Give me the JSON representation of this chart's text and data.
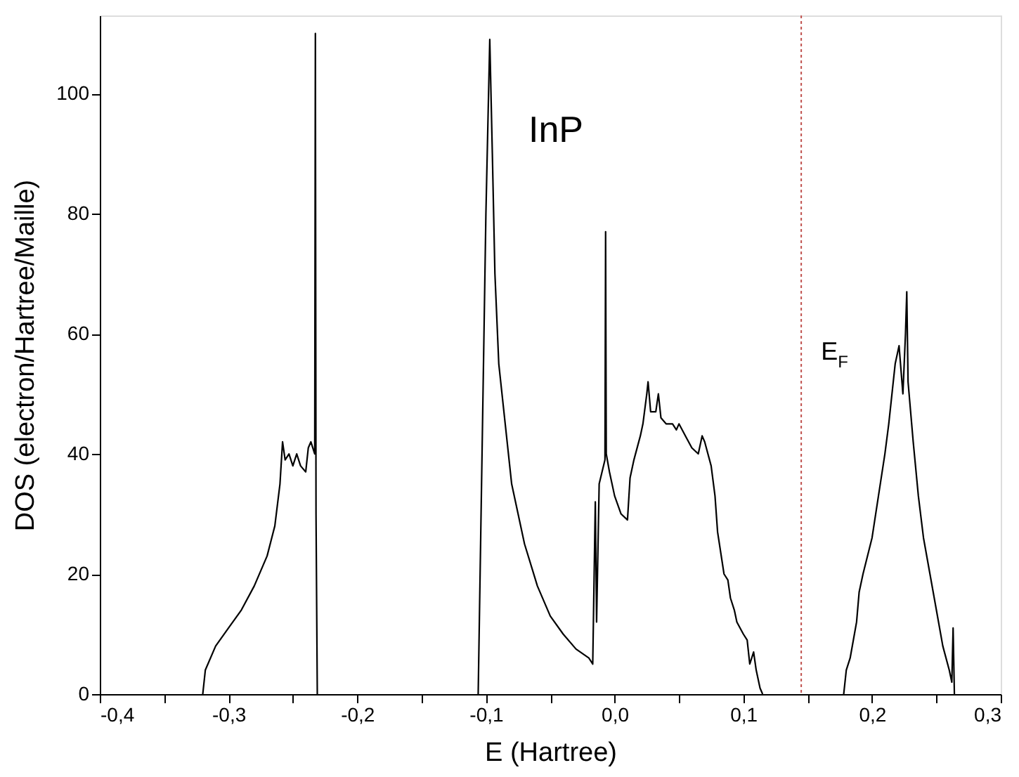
{
  "chart_data": {
    "type": "line",
    "xlabel": "E (Hartree)",
    "ylabel": "DOS (electron/Hartree/Maille)",
    "annotations": [
      "InP"
    ],
    "xlim": [
      -0.4,
      0.3
    ],
    "ylim": [
      0,
      113
    ],
    "xticks": [
      {
        "value": -0.4,
        "label": "-0,4"
      },
      {
        "value": -0.35,
        "label": null
      },
      {
        "value": -0.3,
        "label": "-0,3"
      },
      {
        "value": -0.25,
        "label": null
      },
      {
        "value": -0.2,
        "label": "-0,2"
      },
      {
        "value": -0.15,
        "label": null
      },
      {
        "value": -0.1,
        "label": "-0,1"
      },
      {
        "value": -0.05,
        "label": null
      },
      {
        "value": 0.0,
        "label": "0,0"
      },
      {
        "value": 0.05,
        "label": null
      },
      {
        "value": 0.1,
        "label": "0,1"
      },
      {
        "value": 0.15,
        "label": null
      },
      {
        "value": 0.2,
        "label": "0,2"
      },
      {
        "value": 0.25,
        "label": null
      },
      {
        "value": 0.3,
        "label": "0,3"
      }
    ],
    "yticks": [
      0,
      20,
      40,
      60,
      80,
      100
    ],
    "grid": false,
    "marker": "none",
    "line_style": "solid",
    "ref_lines": [
      {
        "axis": "x",
        "value": 0.145,
        "color": "#c0504d",
        "line_style": "dotted",
        "label": "E$_{F}$"
      }
    ],
    "series": [
      {
        "color": "#000000",
        "x": [
          -0.32,
          -0.318,
          -0.31,
          -0.3,
          -0.29,
          -0.28,
          -0.27,
          -0.264,
          -0.26,
          -0.258,
          -0.256,
          -0.253,
          -0.25,
          -0.247,
          -0.244,
          -0.24,
          -0.238,
          -0.236,
          -0.233,
          -0.2325,
          -0.232,
          -0.231,
          -0.2,
          -0.106,
          -0.1,
          -0.097,
          -0.095,
          -0.093,
          -0.09,
          -0.085,
          -0.08,
          -0.07,
          -0.06,
          -0.05,
          -0.04,
          -0.03,
          -0.02,
          -0.017,
          -0.015,
          -0.014,
          -0.012,
          -0.0075,
          -0.007,
          -0.0065,
          -0.004,
          0.0,
          0.005,
          0.01,
          0.012,
          0.015,
          0.02,
          0.022,
          0.025,
          0.026,
          0.028,
          0.032,
          0.034,
          0.036,
          0.04,
          0.045,
          0.048,
          0.05,
          0.055,
          0.06,
          0.065,
          0.068,
          0.07,
          0.075,
          0.078,
          0.08,
          0.085,
          0.088,
          0.09,
          0.093,
          0.095,
          0.1,
          0.103,
          0.105,
          0.108,
          0.11,
          0.113,
          0.115,
          0.15,
          0.178,
          0.18,
          0.183,
          0.188,
          0.19,
          0.193,
          0.2,
          0.205,
          0.21,
          0.213,
          0.218,
          0.221,
          0.224,
          0.226,
          0.227,
          0.228,
          0.232,
          0.236,
          0.24,
          0.245,
          0.25,
          0.255,
          0.26,
          0.262,
          0.263,
          0.264
        ],
        "values": [
          0,
          4,
          8,
          11,
          14,
          18,
          23,
          28,
          35,
          42,
          39,
          40,
          38,
          40,
          38,
          37,
          41,
          42,
          40,
          110,
          30,
          0,
          null,
          0,
          80,
          109,
          90,
          70,
          55,
          45,
          35,
          25,
          18,
          13,
          10,
          7.5,
          6,
          5,
          32,
          12,
          35,
          39,
          77,
          40,
          37,
          33,
          30,
          29,
          36,
          39,
          43,
          45,
          50,
          52,
          47,
          47,
          50,
          46,
          45,
          45,
          44,
          45,
          43,
          41,
          40,
          43,
          42,
          38,
          33,
          27,
          20,
          19,
          16,
          14,
          12,
          10,
          9,
          5,
          7,
          4,
          1,
          0,
          null,
          0,
          4,
          6,
          12,
          17,
          20,
          26,
          33,
          40,
          45,
          55,
          58,
          50,
          60,
          67,
          52,
          42,
          33,
          26,
          20,
          14,
          8,
          4,
          2,
          11,
          0
        ]
      }
    ]
  }
}
